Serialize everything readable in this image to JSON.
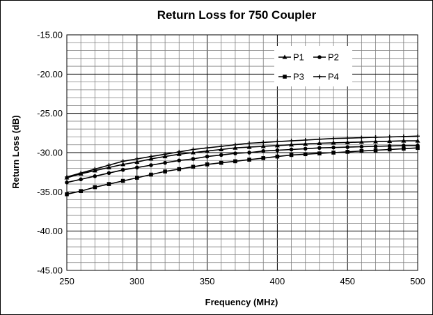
{
  "chart_data": {
    "type": "line",
    "title": "Return Loss for 750 Coupler",
    "xlabel": "Frequency (MHz)",
    "ylabel": "Return Loss (dB)",
    "xlim": [
      250,
      500
    ],
    "ylim": [
      -45,
      -15
    ],
    "x_ticks": [
      250,
      300,
      350,
      400,
      450,
      500
    ],
    "x_tick_labels": [
      "250",
      "300",
      "350",
      "400",
      "450",
      "500"
    ],
    "y_ticks": [
      -15,
      -20,
      -25,
      -30,
      -35,
      -40,
      -45
    ],
    "y_tick_labels": [
      "-15.00",
      "-20.00",
      "-25.00",
      "-30.00",
      "-35.00",
      "-40.00",
      "-45.00"
    ],
    "grid": true,
    "legend_position": "top-right",
    "x": [
      250,
      260,
      270,
      280,
      290,
      300,
      310,
      320,
      330,
      340,
      350,
      360,
      370,
      380,
      390,
      400,
      410,
      420,
      430,
      440,
      450,
      460,
      470,
      480,
      490,
      500
    ],
    "series": [
      {
        "name": "P1",
        "marker": "triangle",
        "values": [
          -33.2,
          -32.7,
          -32.3,
          -31.9,
          -31.5,
          -31.2,
          -30.8,
          -30.5,
          -30.2,
          -30.0,
          -29.8,
          -29.6,
          -29.4,
          -29.3,
          -29.2,
          -29.1,
          -29.0,
          -28.9,
          -28.8,
          -28.75,
          -28.7,
          -28.65,
          -28.6,
          -28.55,
          -28.5,
          -28.5
        ]
      },
      {
        "name": "P2",
        "marker": "circle",
        "values": [
          -33.8,
          -33.4,
          -33.0,
          -32.6,
          -32.2,
          -31.9,
          -31.6,
          -31.3,
          -31.0,
          -30.8,
          -30.5,
          -30.3,
          -30.1,
          -30.0,
          -29.8,
          -29.7,
          -29.6,
          -29.5,
          -29.4,
          -29.35,
          -29.3,
          -29.25,
          -29.2,
          -29.15,
          -29.1,
          -29.1
        ]
      },
      {
        "name": "P3",
        "marker": "square",
        "values": [
          -35.3,
          -34.9,
          -34.4,
          -34.0,
          -33.6,
          -33.2,
          -32.8,
          -32.4,
          -32.1,
          -31.8,
          -31.5,
          -31.3,
          -31.1,
          -30.9,
          -30.7,
          -30.5,
          -30.3,
          -30.2,
          -30.1,
          -30.0,
          -29.9,
          -29.8,
          -29.7,
          -29.6,
          -29.5,
          -29.4
        ]
      },
      {
        "name": "P4",
        "marker": "cross",
        "values": [
          -33.1,
          -32.6,
          -32.1,
          -31.6,
          -31.1,
          -30.8,
          -30.5,
          -30.2,
          -29.9,
          -29.6,
          -29.4,
          -29.2,
          -29.0,
          -28.8,
          -28.7,
          -28.6,
          -28.5,
          -28.4,
          -28.3,
          -28.2,
          -28.15,
          -28.1,
          -28.05,
          -28.0,
          -27.95,
          -27.9
        ]
      }
    ]
  }
}
